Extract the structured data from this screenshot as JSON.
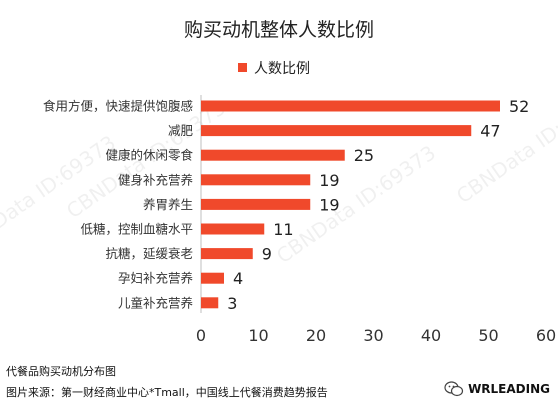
{
  "chart_data": {
    "type": "bar",
    "orientation": "horizontal",
    "title": "购买动机整体人数比例",
    "categories": [
      "食用方便，快速提供饱腹感",
      "减肥",
      "健康的休闲零食",
      "健身补充营养",
      "养胃养生",
      "低糖，控制血糖水平",
      "抗糖，延缓衰老",
      "孕妇补充营养",
      "儿童补充营养"
    ],
    "series": [
      {
        "name": "人数比例",
        "values": [
          52,
          47,
          25,
          19,
          19,
          11,
          9,
          4,
          3
        ]
      }
    ],
    "xlim": [
      0,
      60
    ],
    "xticks": [
      0,
      10,
      20,
      30,
      40,
      50,
      60
    ],
    "legend": "top-center",
    "grid": false,
    "bar_color": "#f0492b"
  },
  "watermark": "CBNData ID:69373",
  "footer": {
    "caption": "代餐品购买动机分布图",
    "source": "图片来源：第一财经商业中心*Tmall，中国线上代餐消费趋势报告"
  },
  "brand": {
    "name": "WRLEADING",
    "icon": "wechat-icon"
  }
}
